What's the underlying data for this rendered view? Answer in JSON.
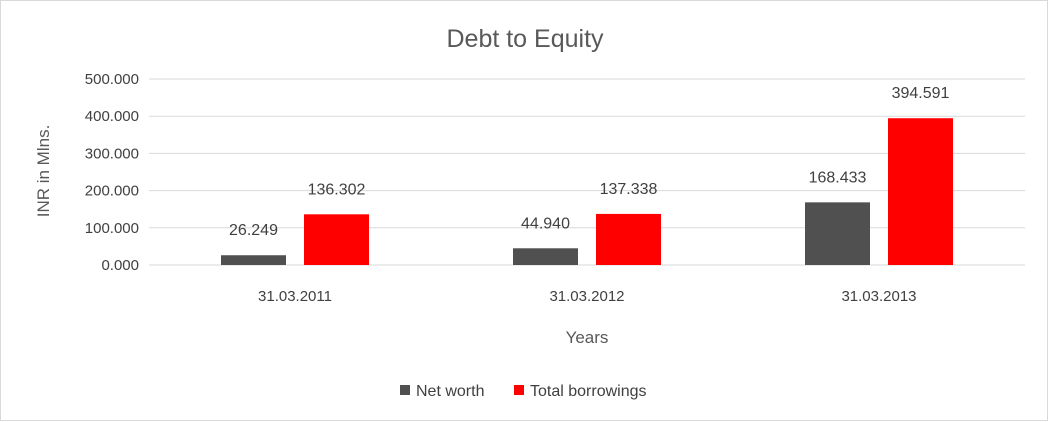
{
  "chart_data": {
    "type": "bar",
    "title": "Debt to Equity",
    "xlabel": "Years",
    "ylabel": "INR in Mlns.",
    "categories": [
      "31.03.2011",
      "31.03.2012",
      "31.03.2013"
    ],
    "series": [
      {
        "name": "Net worth",
        "values": [
          26.249,
          44.94,
          168.433
        ],
        "labels": [
          "26.249",
          "44.940",
          "168.433"
        ],
        "color": "#505050"
      },
      {
        "name": "Total borrowings",
        "values": [
          136.302,
          137.338,
          394.591
        ],
        "labels": [
          "136.302",
          "137.338",
          "394.591"
        ],
        "color": "#ff0000"
      }
    ],
    "ylim": [
      0,
      500
    ],
    "yticks": [
      0,
      100,
      200,
      300,
      400,
      500
    ],
    "ytick_labels": [
      "0.000",
      "100.000",
      "200.000",
      "300.000",
      "400.000",
      "500.000"
    ],
    "grid": true,
    "legend_position": "bottom"
  }
}
